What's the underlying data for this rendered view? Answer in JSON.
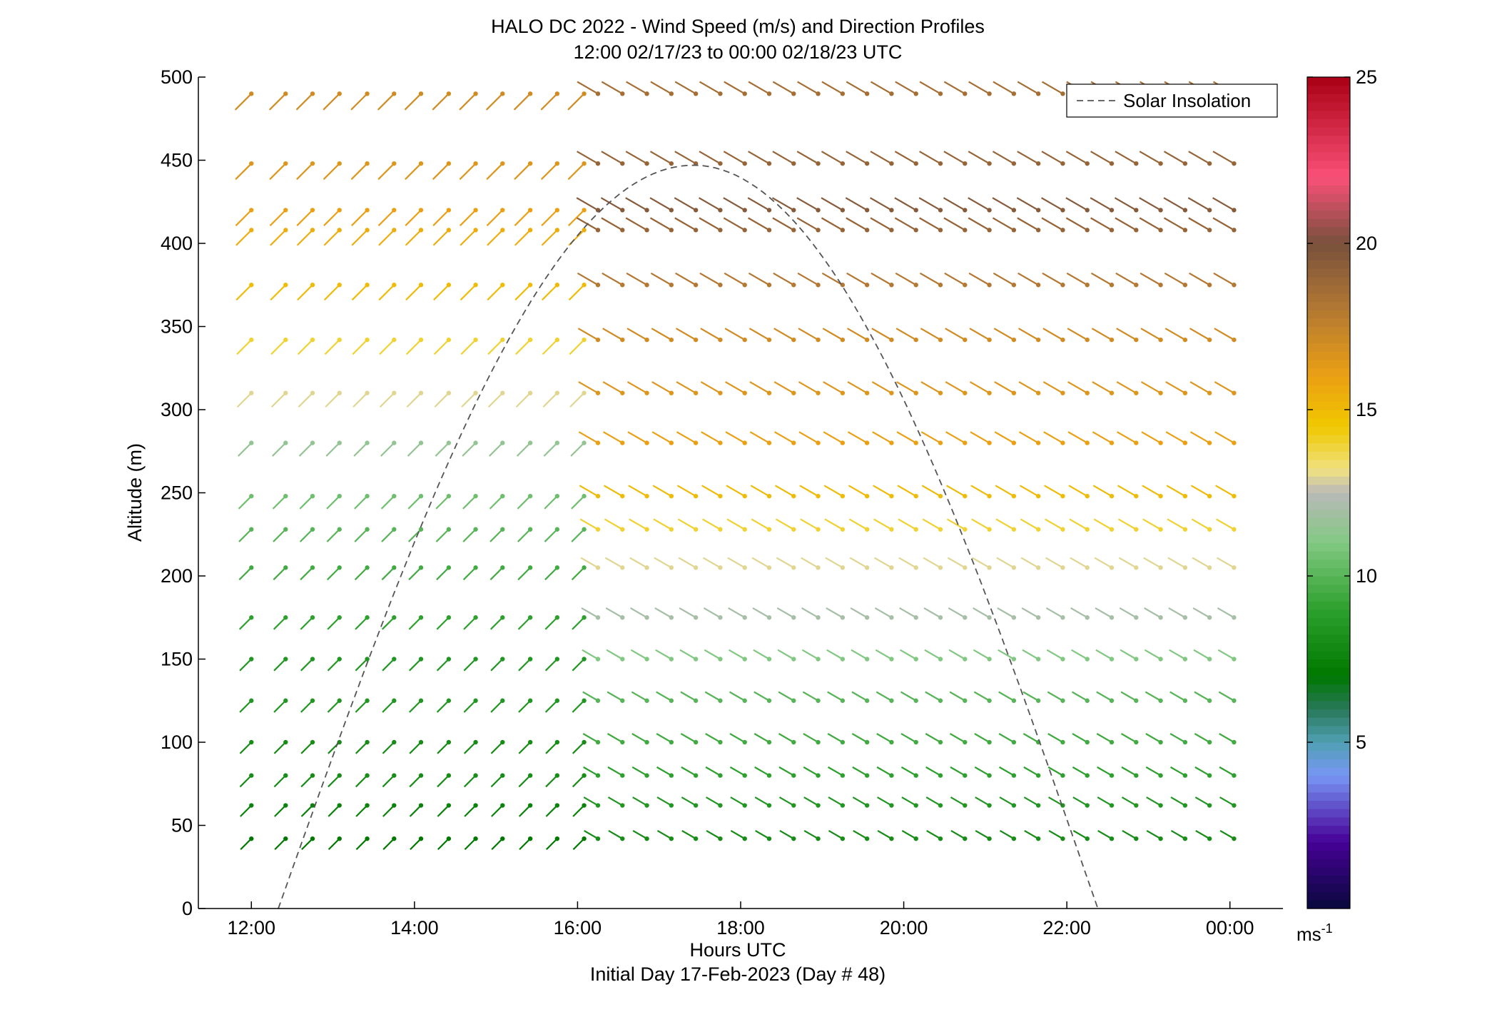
{
  "chart_data": {
    "type": "scatter",
    "title": "HALO DC 2022 - Wind Speed (m/s) and Direction Profiles",
    "subtitle": "12:00 02/17/23 to 00:00 02/18/23  UTC",
    "xlabel": "Hours UTC",
    "xlabel2": "Initial Day 17-Feb-2023 (Day # 48)",
    "ylabel": "Altitude (m)",
    "xlim": [
      11.35,
      24.65
    ],
    "ylim": [
      0,
      500
    ],
    "x_ticks": [
      12,
      14,
      16,
      18,
      20,
      22,
      24
    ],
    "x_tick_labels": [
      "12:00",
      "14:00",
      "16:00",
      "18:00",
      "20:00",
      "22:00",
      "00:00"
    ],
    "y_ticks": [
      0,
      50,
      100,
      150,
      200,
      250,
      300,
      350,
      400,
      450,
      500
    ],
    "y_tick_labels": [
      "0",
      "50",
      "100",
      "150",
      "200",
      "250",
      "300",
      "350",
      "400",
      "450",
      "500"
    ],
    "grid": false,
    "legend": {
      "placement": "top-right",
      "entries": [
        {
          "label": "Solar Insolation",
          "style": "dashed",
          "color": "#555555"
        }
      ]
    },
    "colorbar": {
      "range": [
        0,
        25
      ],
      "ticks": [
        5,
        10,
        15,
        20,
        25
      ],
      "tick_labels": [
        "5",
        "10",
        "15",
        "20",
        "25"
      ],
      "unit_label": "ms",
      "unit_exponent": "-1"
    },
    "altitudes": [
      42,
      62,
      80,
      100,
      125,
      150,
      175,
      205,
      228,
      248,
      280,
      310,
      342,
      375,
      408,
      420,
      448,
      490
    ],
    "time_columns_early": [
      12.0,
      12.42,
      12.75,
      13.08,
      13.42,
      13.75,
      14.08,
      14.42,
      14.75,
      15.08,
      15.42,
      15.75,
      16.08
    ],
    "time_columns_late": [
      16.25,
      16.55,
      16.85,
      17.15,
      17.45,
      17.75,
      18.05,
      18.35,
      18.65,
      18.95,
      19.25,
      19.55,
      19.85,
      20.15,
      20.45,
      20.75,
      21.05,
      21.35,
      21.65,
      21.95,
      22.25,
      22.55,
      22.85,
      23.15,
      23.45,
      23.75,
      24.05
    ],
    "speed_profile_early": [
      {
        "alt": 42,
        "speed": 7
      },
      {
        "alt": 62,
        "speed": 7.5
      },
      {
        "alt": 80,
        "speed": 8
      },
      {
        "alt": 100,
        "speed": 8
      },
      {
        "alt": 125,
        "speed": 8.5
      },
      {
        "alt": 150,
        "speed": 8.5
      },
      {
        "alt": 175,
        "speed": 9
      },
      {
        "alt": 205,
        "speed": 9.5
      },
      {
        "alt": 228,
        "speed": 10
      },
      {
        "alt": 248,
        "speed": 10.5
      },
      {
        "alt": 280,
        "speed": 11.5
      },
      {
        "alt": 310,
        "speed": 13
      },
      {
        "alt": 342,
        "speed": 14
      },
      {
        "alt": 375,
        "speed": 15
      },
      {
        "alt": 408,
        "speed": 15.5
      },
      {
        "alt": 420,
        "speed": 16
      },
      {
        "alt": 448,
        "speed": 16.5
      },
      {
        "alt": 490,
        "speed": 17
      }
    ],
    "speed_profile_late": [
      {
        "alt": 42,
        "speed": 8
      },
      {
        "alt": 62,
        "speed": 8.5
      },
      {
        "alt": 80,
        "speed": 9
      },
      {
        "alt": 100,
        "speed": 9.5
      },
      {
        "alt": 125,
        "speed": 10
      },
      {
        "alt": 150,
        "speed": 11
      },
      {
        "alt": 175,
        "speed": 12
      },
      {
        "alt": 205,
        "speed": 13
      },
      {
        "alt": 228,
        "speed": 14
      },
      {
        "alt": 248,
        "speed": 15
      },
      {
        "alt": 280,
        "speed": 16
      },
      {
        "alt": 310,
        "speed": 16.5
      },
      {
        "alt": 342,
        "speed": 17
      },
      {
        "alt": 375,
        "speed": 18
      },
      {
        "alt": 408,
        "speed": 19
      },
      {
        "alt": 420,
        "speed": 19.5
      },
      {
        "alt": 448,
        "speed": 19
      },
      {
        "alt": 490,
        "speed": 18.5
      }
    ],
    "direction_early_deg": 225,
    "direction_late_deg": 300,
    "solar_insolation": {
      "start_time": 12.33,
      "peak_time": 17.42,
      "peak_altitude": 447,
      "end_time": 22.38
    }
  }
}
